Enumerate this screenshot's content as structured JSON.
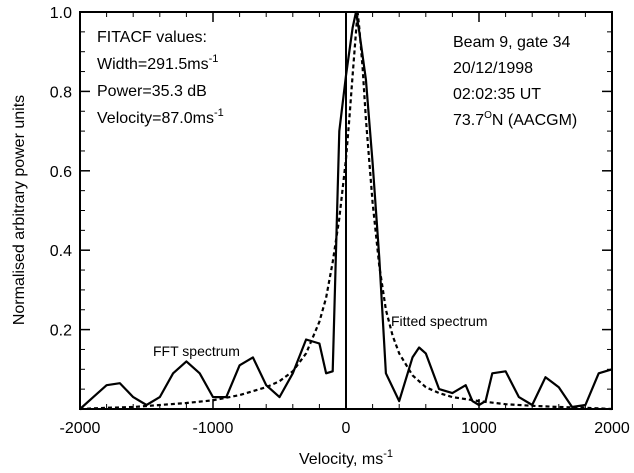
{
  "chart_data": {
    "type": "line",
    "xlabel": "Velocity, ms",
    "xlabel_sup": "-1",
    "ylabel": "Normalised arbitrary power units",
    "xlim": [
      -2000,
      2000
    ],
    "ylim": [
      0,
      1.0
    ],
    "xticks": [
      -2000,
      -1000,
      0,
      1000,
      2000
    ],
    "xtick_labels": [
      "-2000",
      "-1000",
      "0",
      "1000",
      "2000"
    ],
    "yticks": [
      0.2,
      0.4,
      0.6,
      0.8,
      1.0
    ],
    "ytick_labels": [
      "0.2",
      "0.4",
      "0.6",
      "0.8",
      "1.0"
    ],
    "grid": false,
    "vline_x": 0,
    "series": [
      {
        "name": "FFT spectrum",
        "style": "solid",
        "x": [
          -2000,
          -1900,
          -1800,
          -1700,
          -1600,
          -1500,
          -1400,
          -1300,
          -1200,
          -1100,
          -1000,
          -900,
          -800,
          -700,
          -600,
          -500,
          -400,
          -300,
          -200,
          -150,
          -100,
          -50,
          0,
          50,
          75,
          100,
          150,
          200,
          250,
          300,
          400,
          500,
          550,
          600,
          700,
          800,
          900,
          950,
          1000,
          1050,
          1100,
          1200,
          1300,
          1400,
          1500,
          1600,
          1700,
          1800,
          1900,
          2000
        ],
        "y": [
          0.0,
          0.03,
          0.06,
          0.065,
          0.03,
          0.01,
          0.03,
          0.09,
          0.12,
          0.09,
          0.03,
          0.03,
          0.11,
          0.13,
          0.06,
          0.03,
          0.09,
          0.175,
          0.165,
          0.09,
          0.095,
          0.7,
          0.84,
          0.96,
          1.0,
          0.95,
          0.83,
          0.62,
          0.38,
          0.09,
          0.02,
          0.13,
          0.155,
          0.14,
          0.05,
          0.04,
          0.06,
          0.02,
          0.01,
          0.02,
          0.09,
          0.095,
          0.03,
          0.01,
          0.08,
          0.055,
          0.005,
          0.01,
          0.09,
          0.1
        ]
      },
      {
        "name": "Fitted spectrum",
        "style": "dashed",
        "x": [
          -2000,
          -1800,
          -1600,
          -1400,
          -1200,
          -1000,
          -800,
          -600,
          -500,
          -400,
          -300,
          -200,
          -150,
          -100,
          -50,
          0,
          25,
          50,
          75,
          87,
          100,
          125,
          150,
          200,
          250,
          300,
          350,
          400,
          500,
          600,
          700,
          800,
          1000,
          1200,
          1400,
          1600,
          1800,
          2000
        ],
        "y": [
          0.0,
          0.003,
          0.005,
          0.01,
          0.015,
          0.022,
          0.035,
          0.055,
          0.07,
          0.095,
          0.14,
          0.22,
          0.28,
          0.37,
          0.48,
          0.63,
          0.73,
          0.84,
          0.95,
          1.0,
          0.96,
          0.86,
          0.73,
          0.52,
          0.36,
          0.25,
          0.185,
          0.14,
          0.085,
          0.055,
          0.04,
          0.03,
          0.02,
          0.012,
          0.008,
          0.005,
          0.003,
          0.0
        ]
      }
    ],
    "annotations": {
      "fitacf_title": "FITACF values:",
      "width_prefix": "Width=291.5ms",
      "width_sup": "-1",
      "power": "Power=35.3 dB",
      "velocity_prefix": "Velocity=87.0ms",
      "velocity_sup": "-1",
      "beam_gate": "Beam 9, gate 34",
      "date": "20/12/1998",
      "time": "02:02:35 UT",
      "lat_value": "73.7",
      "lat_degree": "O",
      "lat_suffix": "N (AACGM)",
      "fft_label": "FFT spectrum",
      "fitted_label": "Fitted spectrum"
    }
  }
}
